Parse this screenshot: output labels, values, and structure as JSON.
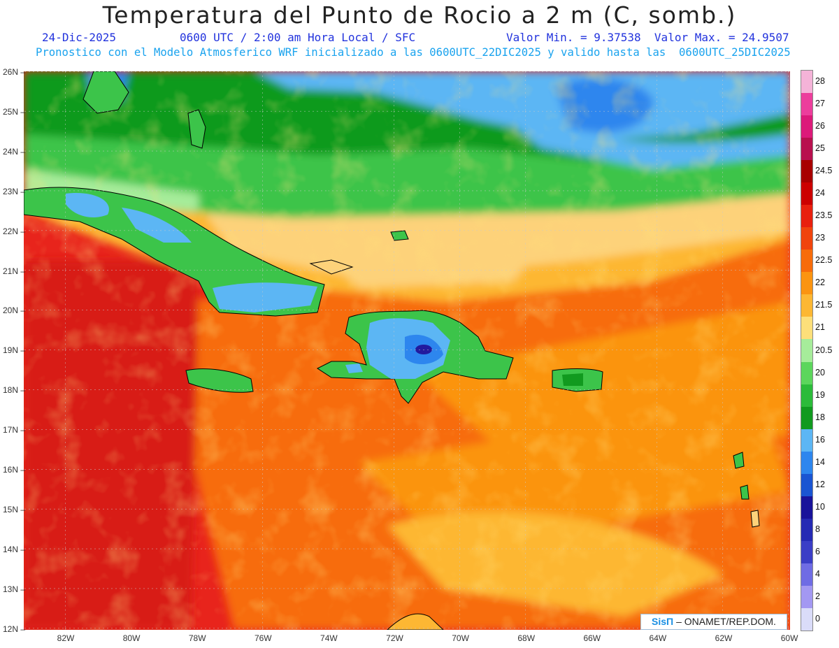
{
  "header": {
    "title": "Temperatura del Punto de Rocio a 2 m (C, somb.)",
    "date": "24-Dic-2025",
    "time": "0600 UTC / 2:00 am Hora Local / SFC",
    "minmax": "Valor Min. = 9.37538  Valor Max. = 24.9507",
    "model": "Pronostico con el Modelo Atmosferico WRF inicializado a las 0600UTC_22DIC2025 y valido hasta las  0600UTC_25DIC2025"
  },
  "credit": {
    "brand": "SisΠ",
    "text": "– ONAMET/REP.DOM."
  },
  "lat_labels": [
    "26N",
    "25N",
    "24N",
    "23N",
    "22N",
    "21N",
    "20N",
    "19N",
    "18N",
    "17N",
    "16N",
    "15N",
    "14N",
    "13N",
    "12N"
  ],
  "lon_labels": [
    "82W",
    "80W",
    "78W",
    "76W",
    "74W",
    "72W",
    "70W",
    "68W",
    "66W",
    "64W",
    "62W",
    "60W"
  ],
  "legend": {
    "labels": [
      "28",
      "27",
      "26",
      "25",
      "24.5",
      "24",
      "23.5",
      "23",
      "22.5",
      "22",
      "21.5",
      "21",
      "20.5",
      "20",
      "19",
      "18",
      "16",
      "14",
      "12",
      "10",
      "8",
      "6",
      "4",
      "2",
      "0"
    ],
    "colors": [
      "#f4b3d8",
      "#ec3e9c",
      "#dc1a7a",
      "#b8104e",
      "#a80000",
      "#cc0000",
      "#e8200e",
      "#f0440d",
      "#f76c0b",
      "#fb9411",
      "#fdb733",
      "#fddf7a",
      "#a6ec9a",
      "#5cd65c",
      "#2cbb3a",
      "#119a1f",
      "#5cb6f4",
      "#2d86ee",
      "#1a55d2",
      "#19139a",
      "#252ab4",
      "#3b3ec6",
      "#6f6ce4",
      "#a398f2",
      "#dadcf9"
    ]
  },
  "colors": {
    "ocean_base": "#e8241c",
    "orange": "#f76c0b",
    "yellow": "#fdd27a",
    "green": "#3cc44a",
    "blue": "#4b98ee",
    "darkblue": "#221a9e"
  }
}
